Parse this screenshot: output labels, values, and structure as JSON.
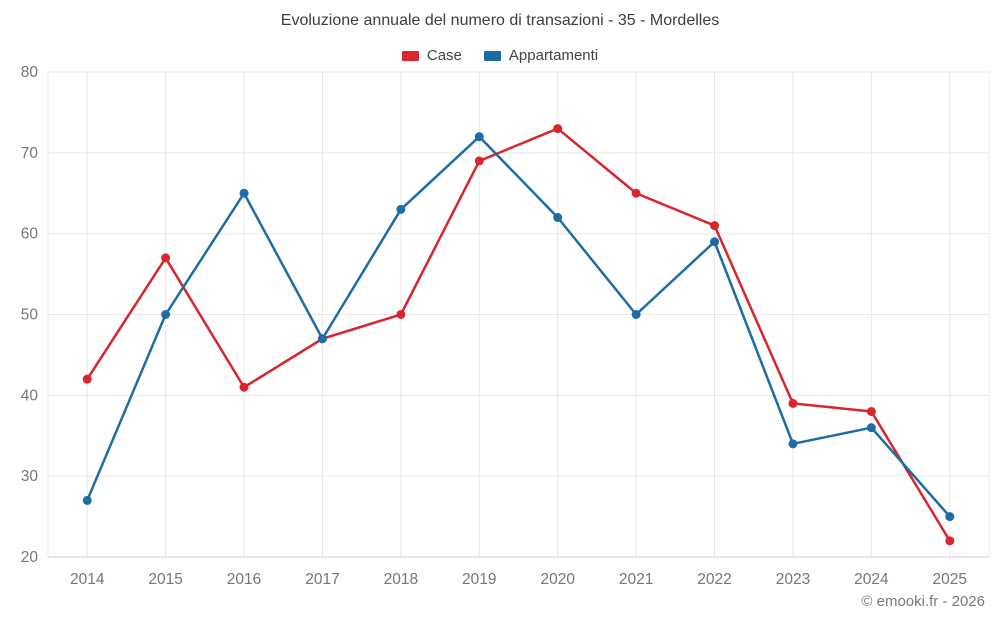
{
  "header": {
    "title": "Evoluzione annuale del numero di transazioni - 35 - Mordelles"
  },
  "footer": {
    "credit": "© emooki.fr - 2026"
  },
  "chart_data": {
    "type": "line",
    "title": "Evoluzione annuale del numero di transazioni - 35 - Mordelles",
    "categories": [
      "2014",
      "2015",
      "2016",
      "2017",
      "2018",
      "2019",
      "2020",
      "2021",
      "2022",
      "2023",
      "2024",
      "2025"
    ],
    "series": [
      {
        "name": "Case",
        "color": "#d8262c",
        "values": [
          42,
          57,
          41,
          47,
          50,
          69,
          73,
          65,
          61,
          39,
          38,
          22
        ]
      },
      {
        "name": "Appartamenti",
        "color": "#1c6ca6",
        "values": [
          27,
          50,
          65,
          47,
          63,
          72,
          62,
          50,
          59,
          34,
          36,
          25
        ]
      }
    ],
    "xlabel": "",
    "ylabel": "",
    "ylim": [
      20,
      80
    ],
    "ytick_step": 10,
    "yticks": [
      "20",
      "30",
      "40",
      "50",
      "60",
      "70",
      "80"
    ],
    "grid": true,
    "legend_position": "top",
    "colors": {
      "grid_line": "#e8e8e8",
      "axis_line": "#cccccc",
      "tick_label": "#767676",
      "title_text": "#3d3d3d"
    }
  }
}
